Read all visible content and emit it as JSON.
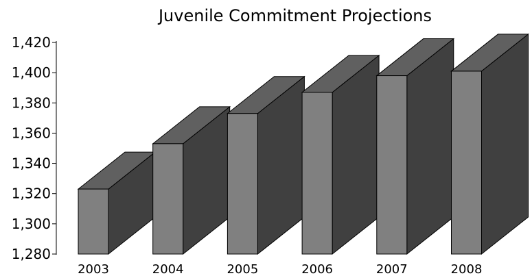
{
  "chart_data": {
    "type": "bar",
    "style": "3d",
    "title": "Juvenile Commitment Projections",
    "xlabel": "",
    "ylabel": "",
    "categories": [
      "2003",
      "2004",
      "2005",
      "2006",
      "2007",
      "2008"
    ],
    "values": [
      1323,
      1353,
      1373,
      1387,
      1398,
      1401
    ],
    "ylim": [
      1280,
      1420
    ],
    "yticks": [
      "1,280",
      "1,300",
      "1,320",
      "1,340",
      "1,360",
      "1,380",
      "1,400",
      "1,420"
    ],
    "grid": false,
    "legend": "none",
    "colors": {
      "front": "#808080",
      "side": "#404040",
      "top": "#606060",
      "edge": "#000000"
    }
  }
}
